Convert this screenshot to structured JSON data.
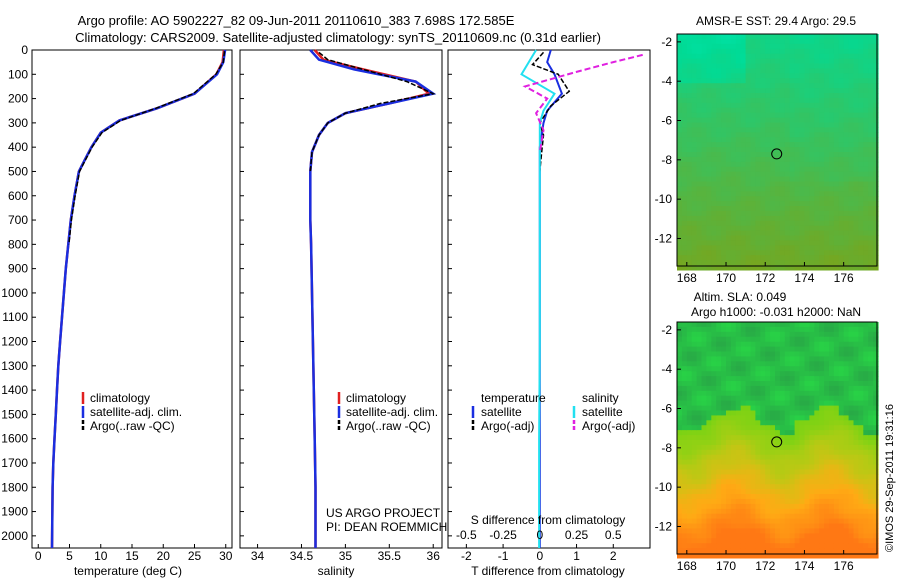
{
  "header": {
    "line1": "Argo profile: AO 5902227_82 09-Jun-2011 20110610_383 7.698S 172.585E",
    "line2": "Climatology: CARS2009. Satellite-adjusted climatology: synTS_20110609.nc (0.31d earlier)"
  },
  "colors": {
    "climatology": "#e02020",
    "satellite": "#1a2ee0",
    "argo": "#000000",
    "salinity_sat": "#22e0f0",
    "salinity_argo": "#e020e0"
  },
  "depth_ticks": [
    "0",
    "100",
    "200",
    "300",
    "400",
    "500",
    "600",
    "700",
    "800",
    "900",
    "1000",
    "1100",
    "1200",
    "1300",
    "1400",
    "1500",
    "1600",
    "1700",
    "1800",
    "1900",
    "2000"
  ],
  "temp_panel": {
    "xlabel": "temperature (deg C)",
    "xticks": [
      "0",
      "5",
      "10",
      "15",
      "20",
      "25",
      "30"
    ],
    "legend": [
      "climatology",
      "satellite-adj. clim.",
      "Argo(..raw -QC)"
    ]
  },
  "sal_panel": {
    "xlabel": "salinity",
    "xticks": [
      "34",
      "34.5",
      "35",
      "35.5",
      "36"
    ],
    "legend": [
      "climatology",
      "satellite-adj. clim.",
      "Argo(..raw -QC)"
    ],
    "project_line1": "US ARGO PROJECT",
    "project_line2": "PI: DEAN ROEMMICH"
  },
  "diff_panel": {
    "xlabel": "T difference from climatology",
    "xticks": [
      "-2",
      "-1",
      "0",
      "1",
      "2"
    ],
    "top_label": "S difference from climatology",
    "top_ticks": [
      "-0.5",
      "-0.25",
      "0",
      "0.25",
      "0.5"
    ],
    "legend_t_title": "temperature",
    "legend_t": [
      "satellite",
      "Argo(-adj)"
    ],
    "legend_s_title": "salinity",
    "legend_s": [
      "satellite",
      "Argo(-adj)"
    ]
  },
  "map_sst": {
    "title": "AMSR-E SST: 29.4  Argo: 29.5",
    "yticks": [
      "-2",
      "-4",
      "-6",
      "-8",
      "-10",
      "-12"
    ],
    "xticks": [
      "168",
      "170",
      "172",
      "174",
      "176"
    ]
  },
  "map_sla": {
    "title1": "Altim. SLA: 0.049",
    "title2": "Argo h1000: -0.031 h2000: NaN",
    "yticks": [
      "-2",
      "-4",
      "-6",
      "-8",
      "-10",
      "-12"
    ],
    "xticks": [
      "168",
      "170",
      "172",
      "174",
      "176"
    ]
  },
  "footer_stamp": "©IMOS 29-Sep-2011 19:31:16",
  "chart_data": [
    {
      "type": "line",
      "title": "",
      "xlabel": "temperature (deg C)",
      "ylabel": "",
      "xlim": [
        -1,
        31
      ],
      "ylim": [
        2050,
        0
      ],
      "series": [
        {
          "name": "climatology",
          "x": [
            29.7,
            29.5,
            28.5,
            25,
            19,
            13,
            10,
            8.5,
            7.5,
            6.5,
            5.8,
            5.2,
            4.8,
            4.4,
            4.1,
            3.8,
            3.5,
            3.2,
            3,
            2.8,
            2.6,
            2.4,
            2.3,
            2.2
          ],
          "y": [
            0,
            50,
            100,
            180,
            240,
            290,
            340,
            400,
            450,
            500,
            600,
            700,
            800,
            900,
            1000,
            1100,
            1200,
            1300,
            1400,
            1500,
            1600,
            1700,
            1800,
            2050
          ]
        },
        {
          "name": "satellite-adj. clim.",
          "x": [
            29.9,
            29.6,
            28.6,
            25,
            19,
            13,
            10,
            8.5,
            7.5,
            6.5,
            5.8,
            5.2,
            4.8,
            4.4,
            4.1,
            3.8,
            3.5,
            3.2,
            3,
            2.8,
            2.6,
            2.4,
            2.3,
            2.2
          ],
          "y": [
            0,
            50,
            100,
            180,
            240,
            290,
            340,
            400,
            450,
            500,
            600,
            700,
            800,
            900,
            1000,
            1100,
            1200,
            1300,
            1400,
            1500,
            1600,
            1700,
            1800,
            2050
          ]
        },
        {
          "name": "Argo(..raw -QC)",
          "x": [
            29.8,
            29.6,
            28.4,
            24.8,
            18.8,
            13.2,
            10.2,
            8.6,
            7.6,
            6.6,
            5.9,
            5.3,
            4.9
          ],
          "y": [
            5,
            50,
            100,
            180,
            240,
            290,
            340,
            400,
            450,
            500,
            600,
            700,
            800
          ]
        }
      ]
    },
    {
      "type": "line",
      "title": "",
      "xlabel": "salinity",
      "ylabel": "",
      "xlim": [
        33.8,
        36.1
      ],
      "ylim": [
        2050,
        0
      ],
      "series": [
        {
          "name": "climatology",
          "x": [
            34.65,
            34.75,
            35.2,
            35.8,
            35.95,
            35.5,
            35.0,
            34.8,
            34.7,
            34.62,
            34.6,
            34.6,
            34.6,
            34.61,
            34.62,
            34.63,
            34.64,
            34.65,
            34.66,
            34.66
          ],
          "y": [
            0,
            40,
            80,
            130,
            180,
            220,
            260,
            300,
            350,
            420,
            500,
            600,
            700,
            800,
            1000,
            1200,
            1400,
            1600,
            1800,
            2050
          ]
        },
        {
          "name": "satellite-adj. clim.",
          "x": [
            34.6,
            34.7,
            35.1,
            35.8,
            36.0,
            35.5,
            35.0,
            34.8,
            34.7,
            34.62,
            34.6,
            34.6,
            34.6,
            34.61,
            34.62,
            34.63,
            34.64,
            34.65,
            34.66,
            34.66
          ],
          "y": [
            0,
            40,
            80,
            130,
            180,
            220,
            260,
            300,
            350,
            420,
            500,
            600,
            700,
            800,
            1000,
            1200,
            1400,
            1600,
            1800,
            2050
          ]
        },
        {
          "name": "Argo(..raw -QC)",
          "x": [
            34.7,
            34.8,
            35.2,
            35.7,
            36.0,
            35.4,
            35.0,
            34.8,
            34.7,
            34.62,
            34.6
          ],
          "y": [
            10,
            40,
            80,
            130,
            180,
            220,
            260,
            300,
            350,
            420,
            500
          ]
        }
      ]
    },
    {
      "type": "line",
      "title": "",
      "xlabel": "T difference from climatology",
      "ylabel": "",
      "xlim": [
        -2.5,
        3
      ],
      "ylim": [
        2050,
        0
      ],
      "series": [
        {
          "name": "temperature satellite",
          "x": [
            0.3,
            0.2,
            0.4,
            0.6,
            0.2,
            0.1,
            0,
            0,
            0,
            0,
            0,
            0
          ],
          "y": [
            0,
            50,
            100,
            180,
            250,
            300,
            400,
            600,
            900,
            1200,
            1600,
            2050
          ]
        },
        {
          "name": "temperature Argo(-adj)",
          "x": [
            0.1,
            -0.2,
            0.5,
            0.8,
            0.3,
            0,
            0.1,
            0.05,
            0
          ],
          "y": [
            10,
            60,
            100,
            170,
            230,
            300,
            350,
            420,
            500
          ]
        },
        {
          "name": "salinity satellite",
          "x": [
            -0.1,
            -0.3,
            -0.5,
            0.4,
            0.1,
            0,
            0,
            0,
            0,
            0,
            -0.02,
            -0.02
          ],
          "y": [
            0,
            50,
            100,
            180,
            250,
            300,
            400,
            600,
            900,
            1200,
            1600,
            2050
          ]
        },
        {
          "name": "salinity Argo(-adj)",
          "x": [
            2.8,
            2,
            1,
            -0.4,
            0.2,
            -0.1,
            0.1,
            0
          ],
          "y": [
            20,
            50,
            90,
            150,
            200,
            260,
            330,
            420
          ]
        }
      ]
    },
    {
      "type": "heatmap",
      "title": "AMSR-E SST: 29.4  Argo: 29.5",
      "xlabel": "",
      "ylabel": "",
      "xlim": [
        167.5,
        177.7
      ],
      "ylim": [
        -13.4,
        -1.6
      ],
      "marker": {
        "lon": 172.585,
        "lat": -7.698
      }
    },
    {
      "type": "heatmap",
      "title": "Altim. SLA: 0.049",
      "xlabel": "",
      "ylabel": "",
      "xlim": [
        167.5,
        177.7
      ],
      "ylim": [
        -13.4,
        -1.6
      ],
      "marker": {
        "lon": 172.585,
        "lat": -7.698
      }
    }
  ]
}
